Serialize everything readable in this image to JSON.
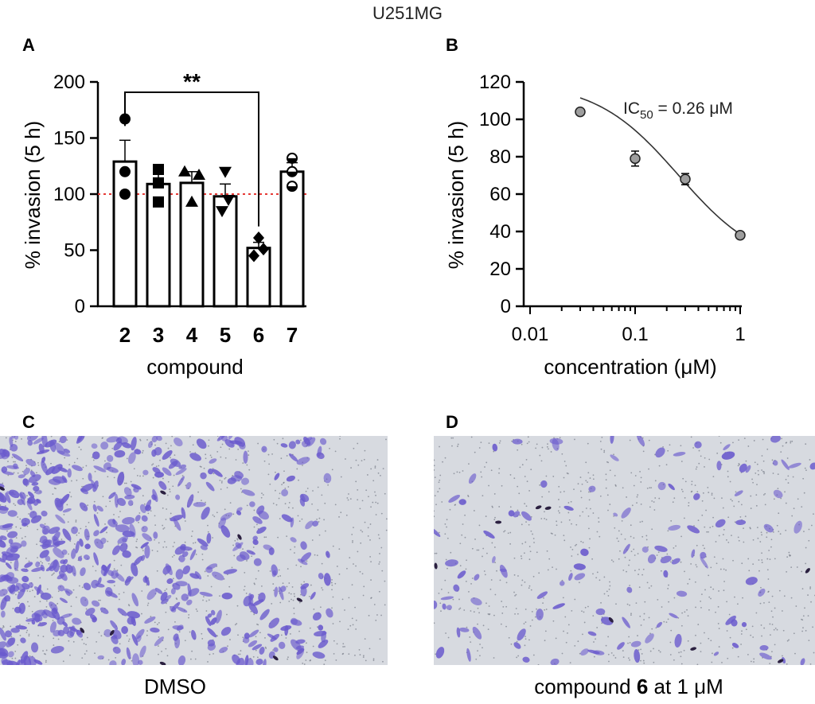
{
  "figure_title": "U251MG",
  "panels": {
    "a": "A",
    "b": "B",
    "c": "C",
    "d": "D"
  },
  "captions": {
    "c": "DMSO",
    "d_prefix": "compound ",
    "d_bold": "6",
    "d_suffix": " at 1 μM"
  },
  "colors": {
    "bar_fill": "#ffffff",
    "bar_edge": "#000000",
    "reference_line": "#e53935",
    "dose_point": "#9e9e9e",
    "cell_stain": "#6a5acd",
    "background_membrane": "#d7dae0"
  },
  "chart_data": [
    {
      "type": "bar",
      "panel": "A",
      "categories": [
        "2",
        "3",
        "4",
        "5",
        "6",
        "7"
      ],
      "values": [
        129,
        109,
        110,
        98,
        52,
        120
      ],
      "errors": [
        19,
        9,
        10,
        11,
        5,
        8
      ],
      "points": [
        [
          167,
          120,
          100
        ],
        [
          122,
          110,
          93
        ],
        [
          120,
          117,
          93
        ],
        [
          120,
          95,
          85
        ],
        [
          61,
          51,
          45
        ],
        [
          132,
          120,
          107
        ]
      ],
      "marker_shapes": [
        "circle",
        "square",
        "triangle-up",
        "triangle-down",
        "diamond",
        "half-circle"
      ],
      "xlabel": "compound",
      "ylabel": "% invasion (5 h)",
      "ylim": [
        0,
        200
      ],
      "yticks": [
        0,
        50,
        100,
        150,
        200
      ],
      "reference_line": 100,
      "significance": {
        "from": "2",
        "to": "6",
        "label": "**"
      }
    },
    {
      "type": "scatter",
      "panel": "B",
      "scale": "log",
      "x": [
        0.03,
        0.1,
        0.3,
        1
      ],
      "y": [
        104,
        79,
        68,
        38
      ],
      "errors": [
        1,
        4,
        3,
        1
      ],
      "xlabel": "concentration (μM)",
      "ylabel": "% invasion (5 h)",
      "xlim": [
        0.01,
        1
      ],
      "xticks": [
        "0.01",
        "0.1",
        "1"
      ],
      "ylim": [
        0,
        120
      ],
      "yticks": [
        0,
        20,
        40,
        60,
        80,
        100,
        120
      ],
      "annotation_main": "IC",
      "annotation_sub": "50",
      "annotation_rest": " = 0.26 μM",
      "fit": {
        "ic50": 0.26,
        "top": 120,
        "bottom": 20
      }
    }
  ]
}
